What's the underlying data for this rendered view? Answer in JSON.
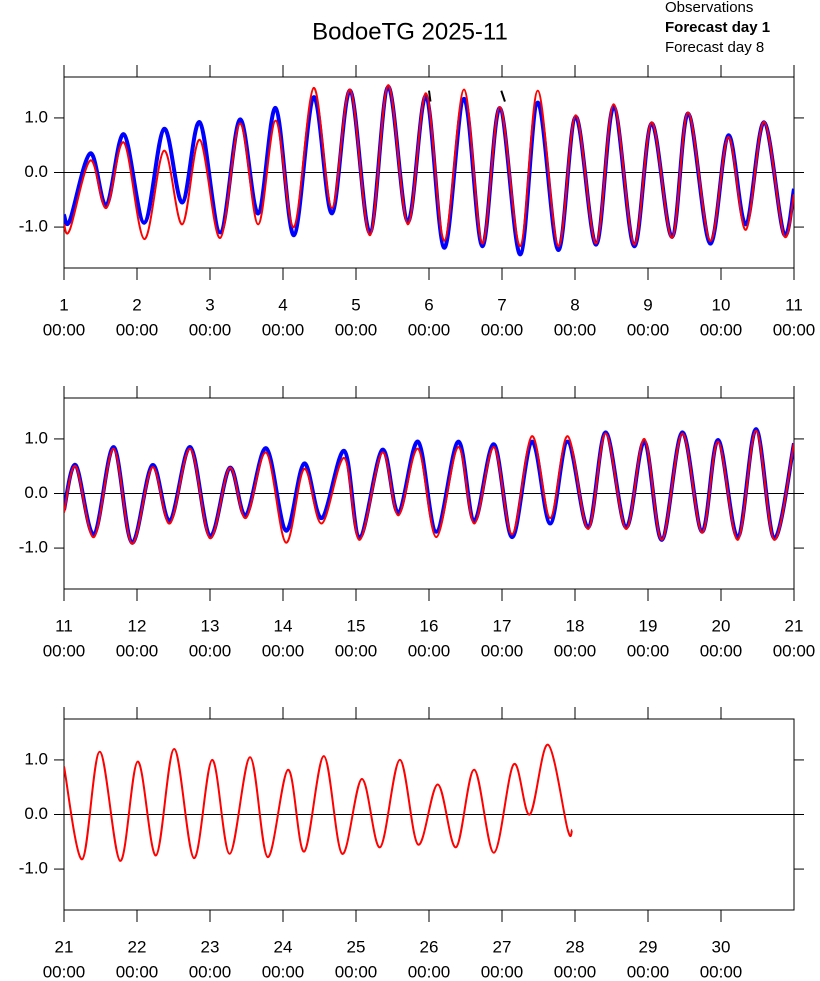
{
  "chart_data": [
    {
      "type": "line",
      "title": "BodoeTG 2025-11",
      "x": [
        1.0,
        1.08,
        1.36,
        1.58,
        1.82,
        2.1,
        2.37,
        2.62,
        2.86,
        3.14,
        3.41,
        3.66,
        3.9,
        4.15,
        4.42,
        4.67,
        4.92,
        5.19,
        5.44,
        5.71,
        5.96,
        6.21,
        6.48,
        6.73,
        6.97,
        7.25,
        7.49,
        7.77,
        8.01,
        8.29,
        8.53,
        8.81,
        9.05,
        9.33,
        9.55,
        9.85,
        10.1,
        10.34,
        10.59,
        10.86,
        11.0
      ],
      "series": [
        {
          "name": "Observations",
          "color": "#000000",
          "x": [
            6.0,
            6.02,
            null,
            6.99,
            7.04
          ],
          "values": [
            1.5,
            1.3,
            null,
            1.5,
            1.3
          ]
        },
        {
          "name": "Forecast day 1",
          "color": "#0000ff",
          "values": [
            -0.78,
            -0.88,
            0.35,
            -0.6,
            0.7,
            -0.92,
            0.8,
            -0.55,
            0.92,
            -1.1,
            0.97,
            -0.75,
            1.18,
            -1.15,
            1.38,
            -0.75,
            1.5,
            -1.1,
            1.57,
            -0.9,
            1.4,
            -1.38,
            1.35,
            -1.35,
            1.18,
            -1.5,
            1.28,
            -1.42,
            1.02,
            -1.32,
            1.2,
            -1.35,
            0.9,
            -1.18,
            1.08,
            -1.3,
            0.68,
            -0.95,
            0.92,
            -1.12,
            -0.3
          ]
        },
        {
          "name": "Forecast day 8",
          "color": "#ff0000",
          "values": [
            -0.95,
            -1.05,
            0.22,
            -0.65,
            0.55,
            -1.22,
            0.4,
            -0.95,
            0.6,
            -1.2,
            0.9,
            -0.95,
            0.95,
            -1.0,
            1.55,
            -0.65,
            1.52,
            -1.15,
            1.6,
            -0.95,
            1.45,
            -1.25,
            1.52,
            -1.3,
            1.2,
            -1.35,
            1.5,
            -1.35,
            1.05,
            -1.3,
            1.25,
            -1.32,
            0.92,
            -1.2,
            1.1,
            -1.25,
            0.65,
            -1.05,
            0.93,
            -1.15,
            -0.4
          ]
        }
      ],
      "xlim": [
        1,
        11
      ],
      "xticks": [
        1,
        2,
        3,
        4,
        5,
        6,
        7,
        8,
        9,
        10,
        11
      ],
      "xtick_times": [
        "00:00",
        "00:00",
        "00:00",
        "00:00",
        "00:00",
        "00:00",
        "00:00",
        "00:00",
        "00:00",
        "00:00",
        "00:00"
      ],
      "ylim": [
        -1.75,
        1.75
      ],
      "yticks": [
        {
          "value": -1,
          "label": "-1.0"
        },
        {
          "value": 0,
          "label": "0.0"
        },
        {
          "value": 1,
          "label": "1.0"
        }
      ]
    },
    {
      "type": "line",
      "x": [
        11.0,
        11.16,
        11.41,
        11.68,
        11.93,
        12.21,
        12.45,
        12.73,
        13.0,
        13.27,
        13.49,
        13.77,
        14.04,
        14.29,
        14.53,
        14.84,
        15.05,
        15.36,
        15.58,
        15.85,
        16.1,
        16.4,
        16.62,
        16.89,
        17.14,
        17.41,
        17.66,
        17.9,
        18.18,
        18.42,
        18.7,
        18.95,
        19.19,
        19.47,
        19.74,
        19.96,
        20.23,
        20.48,
        20.73,
        21.0
      ],
      "series": [
        {
          "color": "#0000ff",
          "values": [
            -0.3,
            0.52,
            -0.75,
            0.85,
            -0.9,
            0.52,
            -0.5,
            0.85,
            -0.78,
            0.47,
            -0.4,
            0.83,
            -0.68,
            0.55,
            -0.45,
            0.78,
            -0.8,
            0.8,
            -0.35,
            0.95,
            -0.7,
            0.95,
            -0.5,
            0.9,
            -0.8,
            0.95,
            -0.55,
            0.95,
            -0.62,
            1.12,
            -0.62,
            0.95,
            -0.85,
            1.12,
            -0.7,
            0.98,
            -0.8,
            1.18,
            -0.82,
            0.92
          ]
        },
        {
          "color": "#ff0000",
          "values": [
            -0.35,
            0.5,
            -0.8,
            0.82,
            -0.92,
            0.48,
            -0.55,
            0.82,
            -0.82,
            0.47,
            -0.45,
            0.75,
            -0.9,
            0.45,
            -0.55,
            0.65,
            -0.85,
            0.75,
            -0.4,
            0.82,
            -0.8,
            0.85,
            -0.55,
            0.85,
            -0.75,
            1.05,
            -0.45,
            1.05,
            -0.65,
            1.1,
            -0.65,
            1.0,
            -0.85,
            1.1,
            -0.72,
            0.95,
            -0.85,
            1.15,
            -0.85,
            0.92
          ]
        }
      ],
      "xlim": [
        11,
        21
      ],
      "xticks": [
        11,
        12,
        13,
        14,
        15,
        16,
        17,
        18,
        19,
        20,
        21
      ],
      "xtick_times": [
        "00:00",
        "00:00",
        "00:00",
        "00:00",
        "00:00",
        "00:00",
        "00:00",
        "00:00",
        "00:00",
        "00:00",
        "00:00"
      ],
      "ylim": [
        -1.75,
        1.75
      ],
      "yticks": [
        {
          "value": -1,
          "label": "-1.0"
        },
        {
          "value": 0,
          "label": "0.0"
        },
        {
          "value": 1,
          "label": "1.0"
        }
      ]
    },
    {
      "type": "line",
      "x": [
        21.0,
        21.25,
        21.49,
        21.77,
        22.01,
        22.26,
        22.51,
        22.78,
        23.03,
        23.27,
        23.55,
        23.79,
        24.07,
        24.29,
        24.56,
        24.81,
        25.08,
        25.33,
        25.6,
        25.85,
        26.12,
        26.37,
        26.62,
        26.89,
        27.16,
        27.38,
        27.63,
        27.9,
        27.96
      ],
      "series": [
        {
          "color": "#ff0000",
          "values": [
            0.88,
            -0.82,
            1.15,
            -0.85,
            0.97,
            -0.75,
            1.2,
            -0.8,
            1.0,
            -0.72,
            1.05,
            -0.78,
            0.82,
            -0.68,
            1.07,
            -0.72,
            0.65,
            -0.6,
            1.0,
            -0.55,
            0.55,
            -0.6,
            0.82,
            -0.7,
            0.92,
            0.0,
            1.28,
            -0.28,
            -0.28
          ]
        }
      ],
      "xlim": [
        21,
        31
      ],
      "xticks": [
        21,
        22,
        23,
        24,
        25,
        26,
        27,
        28,
        29,
        30
      ],
      "xtick_times": [
        "00:00",
        "00:00",
        "00:00",
        "00:00",
        "00:00",
        "00:00",
        "00:00",
        "00:00",
        "00:00",
        "00:00"
      ],
      "ylim": [
        -1.75,
        1.75
      ],
      "yticks": [
        {
          "value": -1,
          "label": "-1.0"
        },
        {
          "value": 0,
          "label": "0.0"
        },
        {
          "value": 1,
          "label": "1.0"
        }
      ]
    }
  ]
}
